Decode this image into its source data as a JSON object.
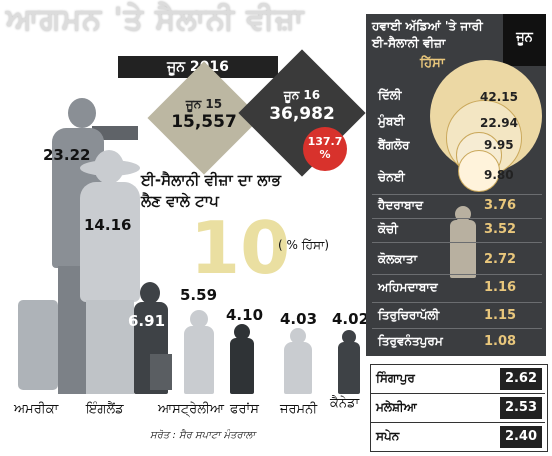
{
  "header": {
    "title": "ਆਗਮਨ 'ਤੇ ਸੈਲਾਨੀ ਵੀਜ਼ਾ",
    "month": "ਜੂਨ 2016"
  },
  "comparison": {
    "june15_label": "ਜੂਨ 15",
    "june15_value": "15,557",
    "june16_label": "ਜੂਨ 16",
    "june16_value": "36,982",
    "growth": "137.7 %"
  },
  "top_countries": {
    "heading": "ਈ-ਸੈਲਾਨੀ ਵੀਜ਼ਾ ਦਾ ਲਾਭ ਲੈਣ ਵਾਲੇ ਟਾਪ",
    "big_number": "10",
    "unit": "( % ਹਿੱਸਾ)",
    "items": [
      {
        "name": "ਅਮਰੀਕਾ",
        "value": "23.22"
      },
      {
        "name": "ਇੰਗਲੈਂਡ",
        "value": "14.16"
      },
      {
        "name": "ਆਸਟ੍ਰੇਲੀਆ",
        "value": "6.91"
      },
      {
        "name": "",
        "value": "5.59"
      },
      {
        "name": "ਫਰਾਂਸ",
        "value": "4.10"
      },
      {
        "name": "ਜਰਮਨੀ",
        "value": "4.03"
      },
      {
        "name": "ਕੈਨੇਡਾ",
        "value": "4.02"
      }
    ],
    "bottom_items": [
      {
        "name": "ਸਿੰਗਾਪੁਰ",
        "value": "2.62"
      },
      {
        "name": "ਮਲੇਸ਼ੀਆ",
        "value": "2.53"
      },
      {
        "name": "ਸਪੇਨ",
        "value": "2.40"
      }
    ]
  },
  "airports": {
    "title": "ਹਵਾਈ ਅੱਡਿਆਂ 'ਤੇ ਜਾਰੀ ਈ-ਸੈਲਾਨੀ ਵੀਜ਼ਾ",
    "month": "ਜੂਨ",
    "share_label": "ਹਿੱਸਾ",
    "items": [
      {
        "name": "ਦਿੱਲੀ",
        "value": "42.15"
      },
      {
        "name": "ਮੁੰਬਈ",
        "value": "22.94"
      },
      {
        "name": "ਬੈਂਗਲੋਰ",
        "value": "9.95"
      },
      {
        "name": "ਚੇਨਈ",
        "value": "9.80"
      },
      {
        "name": "ਹੈਦਰਾਬਾਦ",
        "value": "3.76"
      },
      {
        "name": "ਕੋਚੀ",
        "value": "3.52"
      },
      {
        "name": "ਕੋਲਕਾਤਾ",
        "value": "2.72"
      },
      {
        "name": "ਅਹਿਮਦਾਬਾਦ",
        "value": "1.16"
      },
      {
        "name": "ਤਿਰੁਚਿਰਾਪੱਲੀ",
        "value": "1.15"
      },
      {
        "name": "ਤਿਰੁਵਨੰਤਪੁਰਮ",
        "value": "1.08"
      }
    ]
  },
  "source": "ਸਰੋਤ : ਸੈਰ ਸਪਾਟਾ ਮੰਤਰਾਲਾ",
  "colors": {
    "panel": "#3b3d40",
    "accent_gold": "#e9c77c",
    "growth_red": "#d8322c",
    "silhouette": "#8a8f95"
  }
}
